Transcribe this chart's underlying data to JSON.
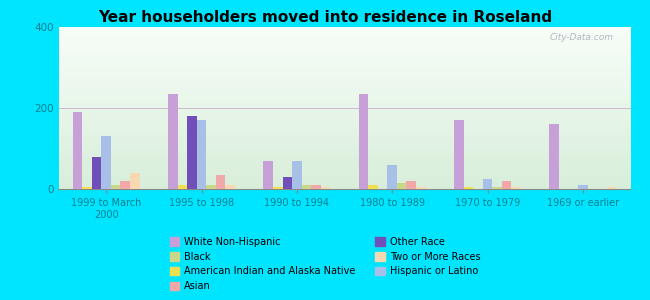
{
  "title": "Year householders moved into residence in Roseland",
  "categories": [
    "1999 to March\n2000",
    "1995 to 1998",
    "1990 to 1994",
    "1980 to 1989",
    "1970 to 1979",
    "1969 or earlier"
  ],
  "series_order": [
    "White Non-Hispanic",
    "American Indian and Alaska Native",
    "Other Race",
    "Hispanic or Latino",
    "Black",
    "Asian",
    "Two or More Races"
  ],
  "series": {
    "White Non-Hispanic": [
      190,
      235,
      70,
      235,
      170,
      160
    ],
    "American Indian and Alaska Native": [
      5,
      10,
      5,
      10,
      5,
      0
    ],
    "Other Race": [
      80,
      180,
      30,
      0,
      0,
      0
    ],
    "Hispanic or Latino": [
      130,
      170,
      70,
      60,
      25,
      10
    ],
    "Black": [
      10,
      10,
      10,
      15,
      5,
      0
    ],
    "Asian": [
      20,
      35,
      10,
      20,
      20,
      0
    ],
    "Two or More Races": [
      40,
      10,
      5,
      5,
      5,
      5
    ]
  },
  "colors": {
    "White Non-Hispanic": "#c8a0d8",
    "American Indian and Alaska Native": "#f0e050",
    "Other Race": "#7050b8",
    "Hispanic or Latino": "#a8c0e8",
    "Black": "#c8d888",
    "Asian": "#f0a8a8",
    "Two or More Races": "#f8d8b0"
  },
  "legend_order": [
    "White Non-Hispanic",
    "Black",
    "American Indian and Alaska Native",
    "Asian",
    "Other Race",
    "Two or More Races",
    "Hispanic or Latino"
  ],
  "ylim": [
    0,
    400
  ],
  "yticks": [
    0,
    200,
    400
  ],
  "figure_bg": "#00e5ff",
  "watermark": "City-Data.com"
}
